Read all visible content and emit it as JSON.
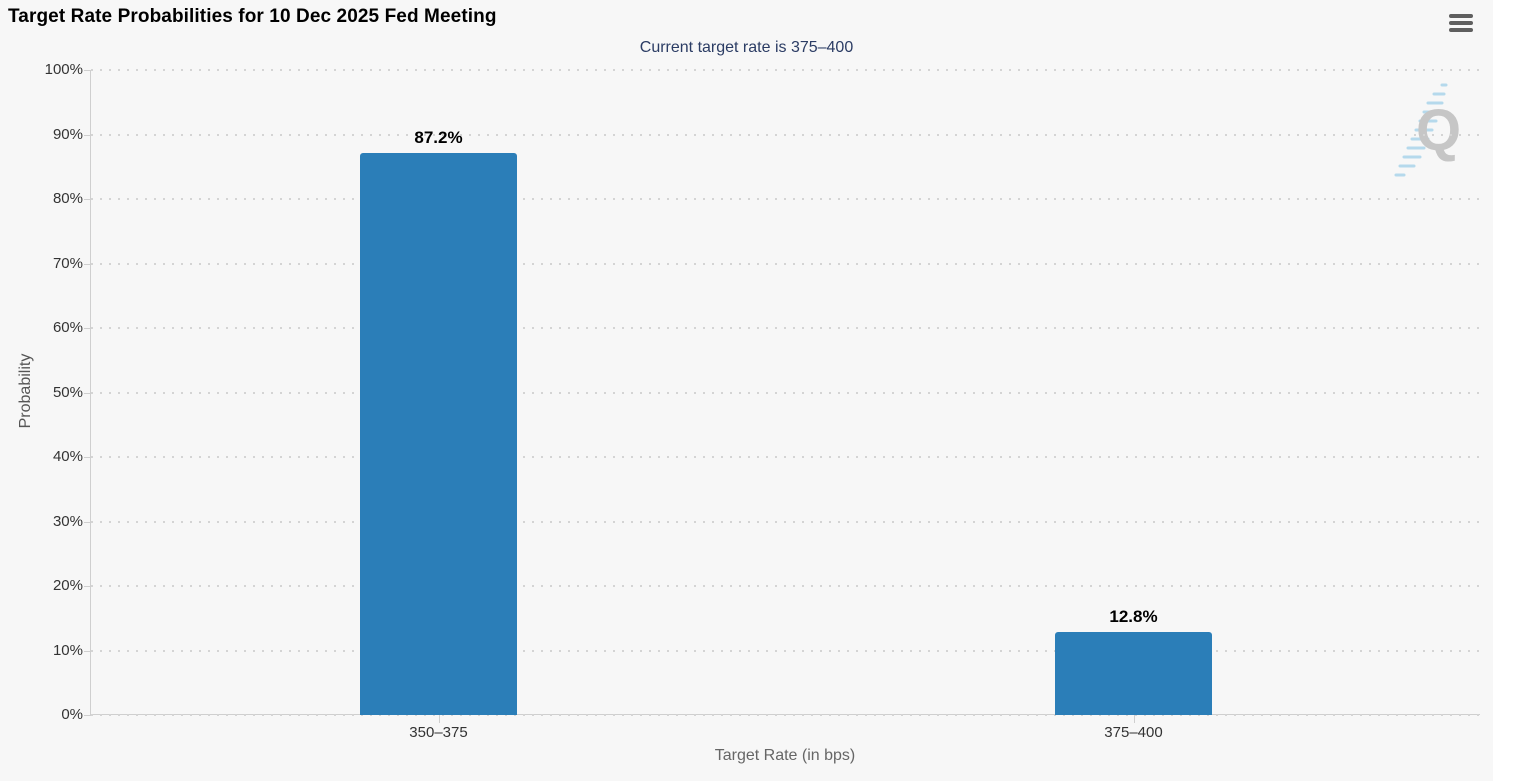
{
  "header": {
    "title": "Target Rate Probabilities for 10 Dec 2025 Fed Meeting",
    "menu_icon": "hamburger-icon"
  },
  "chart_data": {
    "type": "bar",
    "title": "Target Rate Probabilities for 10 Dec 2025 Fed Meeting",
    "subtitle": "Current target rate is 375–400",
    "categories": [
      "350–375",
      "375–400"
    ],
    "values": [
      87.2,
      12.8
    ],
    "value_labels": [
      "87.2%",
      "12.8%"
    ],
    "xlabel": "Target Rate (in bps)",
    "ylabel": "Probability",
    "ylim": [
      0,
      100
    ],
    "ytick_step": 10,
    "ytick_suffix": "%",
    "grid": "dotted horizontal gridlines, on",
    "legend": "none",
    "bar_color": "#2b7eb8",
    "background_color": "#f7f7f7",
    "subtitle_color": "#2b3c64",
    "watermark": "Q"
  }
}
